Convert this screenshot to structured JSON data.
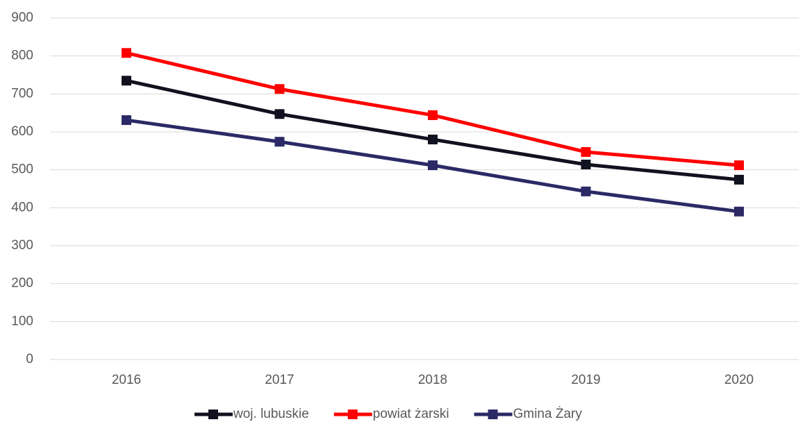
{
  "chart_data": {
    "type": "line",
    "categories": [
      "2016",
      "2017",
      "2018",
      "2019",
      "2020"
    ],
    "series": [
      {
        "name": "woj. lubuskie",
        "color": "#11111f",
        "values": [
          735,
          647,
          580,
          514,
          474
        ]
      },
      {
        "name": "powiat żarski",
        "color": "#ff0000",
        "values": [
          808,
          713,
          644,
          547,
          512
        ]
      },
      {
        "name": "Gmina Żary",
        "color": "#2b2a66",
        "values": [
          631,
          574,
          512,
          443,
          390
        ]
      }
    ],
    "ylim": [
      0,
      900
    ],
    "yticks": [
      0,
      100,
      200,
      300,
      400,
      500,
      600,
      700,
      800,
      900
    ],
    "grid": true,
    "legend": "bottom"
  }
}
